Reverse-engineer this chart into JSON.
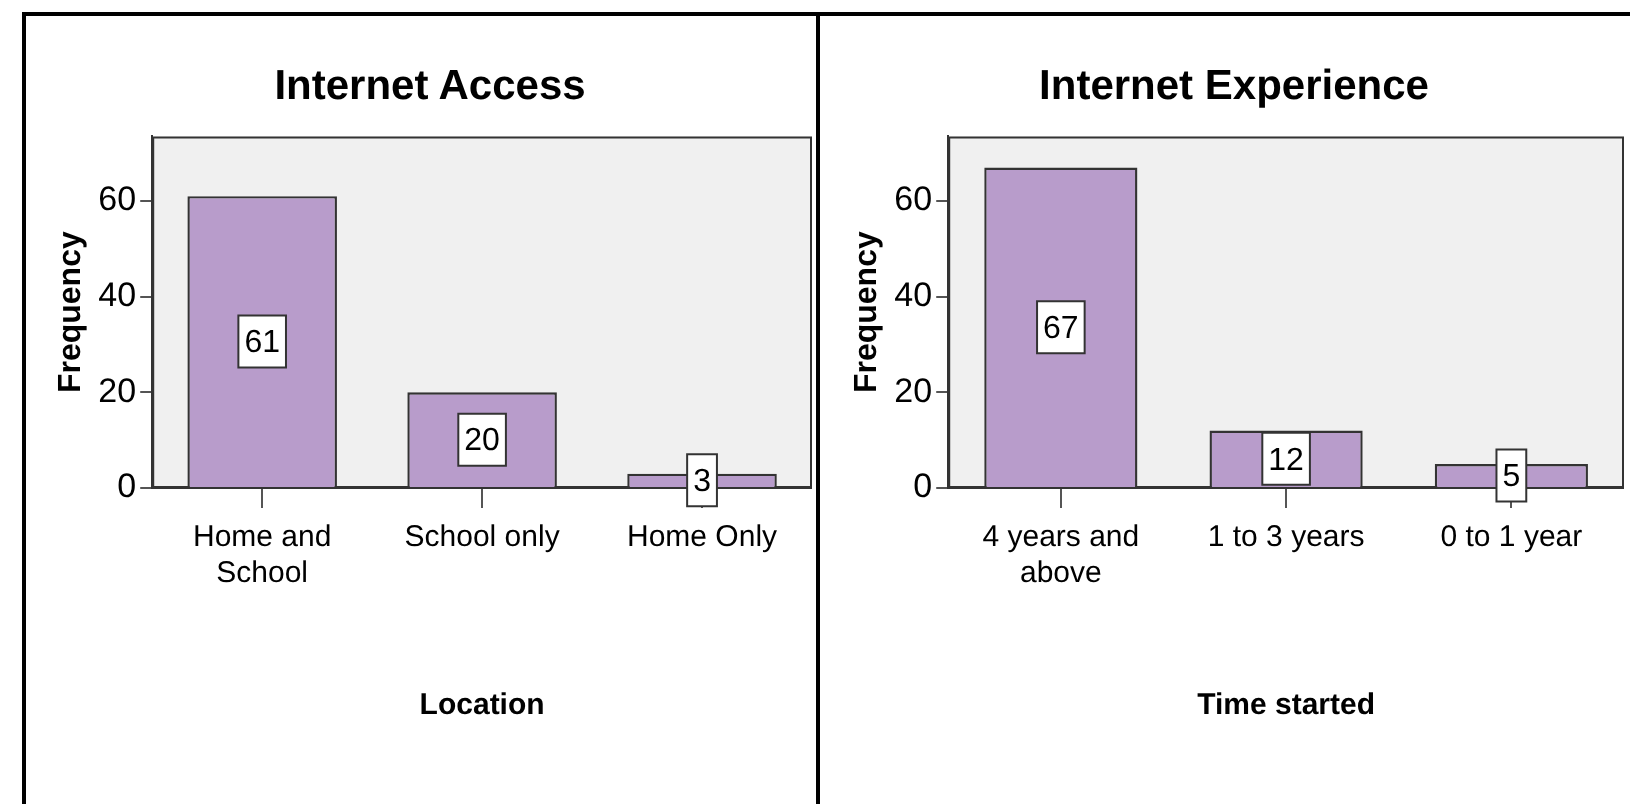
{
  "chart_data": [
    {
      "type": "bar",
      "title": "Internet Access",
      "xlabel": "Location",
      "ylabel": "Frequency",
      "categories": [
        "Home and School",
        "School only",
        "Home Only"
      ],
      "values": [
        61,
        20,
        3
      ],
      "color": "#b89ccb",
      "ylim": [
        0,
        73.5
      ],
      "yticks": [
        0,
        20,
        40,
        60
      ],
      "data_labels": true,
      "legend": false
    },
    {
      "type": "bar",
      "title": "Internet Experience",
      "xlabel": "Time started",
      "ylabel": "Frequency",
      "categories": [
        "4 years and above",
        "1 to 3 years",
        "0 to 1 year"
      ],
      "values": [
        67,
        12,
        5
      ],
      "color": "#b89ccb",
      "ylim": [
        0,
        73.5
      ],
      "yticks": [
        0,
        20,
        40,
        60
      ],
      "data_labels": true,
      "legend": false
    }
  ]
}
